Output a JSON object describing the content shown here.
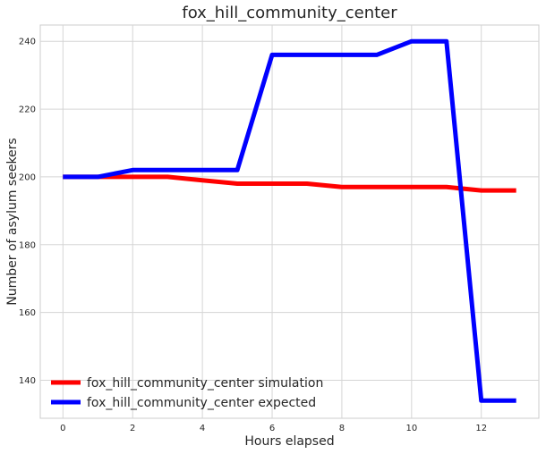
{
  "chart_data": {
    "type": "line",
    "title": "fox_hill_community_center",
    "xlabel": "Hours elapsed",
    "ylabel": "Number of asylum seekers",
    "x": [
      0,
      1,
      2,
      3,
      4,
      5,
      6,
      7,
      8,
      9,
      10,
      11,
      12,
      13
    ],
    "xlim": [
      -0.65,
      13.65
    ],
    "ylim": [
      128.8,
      244.8
    ],
    "xticks": [
      0,
      2,
      4,
      6,
      8,
      10,
      12
    ],
    "yticks": [
      140,
      160,
      180,
      200,
      220,
      240
    ],
    "grid": true,
    "legend_position": "lower-left",
    "series": [
      {
        "name": "fox_hill_community_center simulation",
        "color": "#ff0000",
        "values": [
          200,
          200,
          200,
          200,
          199,
          198,
          198,
          198,
          197,
          197,
          197,
          197,
          196,
          196
        ]
      },
      {
        "name": "fox_hill_community_center expected",
        "color": "#0000ff",
        "values": [
          200,
          200,
          202,
          202,
          202,
          202,
          236,
          236,
          236,
          236,
          240,
          240,
          134,
          134
        ]
      }
    ]
  }
}
